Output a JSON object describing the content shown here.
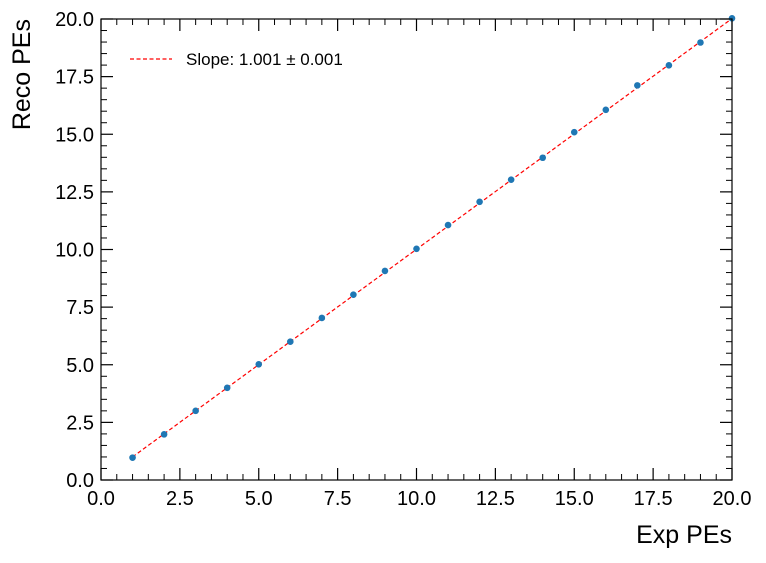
{
  "chart_data": {
    "type": "scatter",
    "title": "",
    "xlabel": "Exp PEs",
    "ylabel": "Reco PEs",
    "xlim": [
      0,
      20
    ],
    "ylim": [
      0,
      20
    ],
    "x_ticks": [
      "0.0",
      "2.5",
      "5.0",
      "7.5",
      "10.0",
      "12.5",
      "15.0",
      "17.5",
      "20.0"
    ],
    "y_ticks": [
      "0.0",
      "2.5",
      "5.0",
      "7.5",
      "10.0",
      "12.5",
      "15.0",
      "17.5",
      "20.0"
    ],
    "grid": false,
    "legend_position": "top-left",
    "points": {
      "x": [
        1,
        2,
        3,
        4,
        5,
        6,
        7,
        8,
        9,
        10,
        11,
        12,
        13,
        14,
        15,
        16,
        17,
        18,
        19,
        20
      ],
      "y": [
        0.97,
        1.98,
        3.0,
        4.0,
        5.02,
        6.0,
        7.03,
        8.04,
        9.07,
        10.03,
        11.06,
        12.07,
        13.03,
        13.98,
        15.09,
        16.06,
        17.12,
        17.99,
        18.98,
        20.03
      ],
      "color": "#1f77b4"
    },
    "fit_line": {
      "label": "Slope: 1.001 ± 0.001",
      "slope": 1.001,
      "x_range": [
        1,
        20
      ],
      "color": "#ff0000",
      "style": "dashed"
    }
  }
}
